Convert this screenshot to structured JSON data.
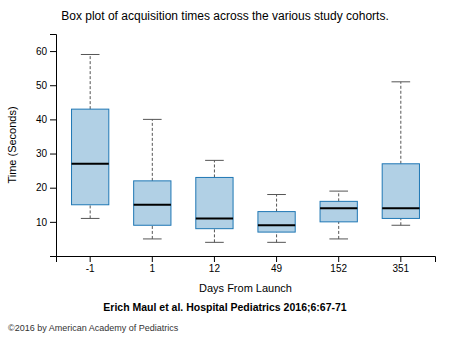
{
  "chart_data": {
    "type": "box",
    "title": "Box plot of acquisition times across the various study cohorts.",
    "xlabel": "Days From Launch",
    "ylabel": "Time (Seconds)",
    "annotations": [
      "Erich Maul et al. Hospital Pediatrics 2016;6:67-71",
      "©2016 by American Academy of Pediatrics"
    ],
    "categories": [
      "-1",
      "1",
      "12",
      "49",
      "152",
      "351"
    ],
    "boxes": [
      {
        "q1": 15,
        "median": 27,
        "q3": 43,
        "whislo": 11,
        "whishi": 59
      },
      {
        "q1": 9,
        "median": 15,
        "q3": 22,
        "whislo": 5,
        "whishi": 40
      },
      {
        "q1": 8,
        "median": 11,
        "q3": 23,
        "whislo": 4,
        "whishi": 28
      },
      {
        "q1": 7,
        "median": 9,
        "q3": 13,
        "whislo": 4,
        "whishi": 18
      },
      {
        "q1": 10,
        "median": 14,
        "q3": 16,
        "whislo": 5,
        "whishi": 19
      },
      {
        "q1": 11,
        "median": 14,
        "q3": 27,
        "whislo": 9,
        "whishi": 51
      }
    ],
    "ylim": [
      0,
      65
    ],
    "yticks": [
      10,
      20,
      30,
      40,
      50,
      60
    ]
  }
}
